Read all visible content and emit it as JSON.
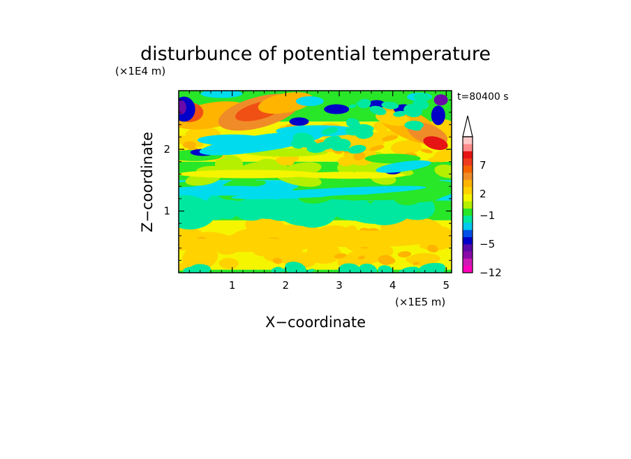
{
  "chart_data": {
    "type": "heatmap",
    "title": "disturbunce of potential temperature",
    "xlabel": "X−coordinate",
    "ylabel": "Z−coordinate",
    "x_unit": "(×1E5 m)",
    "y_unit": "(×1E4 m)",
    "time_label": "t=80400 s",
    "xlim": [
      0,
      5.1
    ],
    "ylim": [
      0,
      2.95
    ],
    "x_ticks": [
      1,
      2,
      3,
      4,
      5
    ],
    "y_ticks": [
      1,
      2
    ],
    "colorbar": {
      "levels": [
        -12,
        -10,
        -8,
        -6,
        -5,
        -4,
        -3,
        -2,
        -1,
        0,
        1,
        2,
        3,
        5,
        6,
        7,
        8,
        9,
        10
      ],
      "tick_labels": [
        "−12",
        "−5",
        "−1",
        "2",
        "7"
      ],
      "tick_values": [
        -12,
        -5,
        -1,
        2,
        7
      ],
      "colors": [
        "#ff00bb",
        "#cc1ab3",
        "#8a0aa8",
        "#5a0aa8",
        "#0000c8",
        "#0050e8",
        "#00c8ee",
        "#00e8a0",
        "#28e628",
        "#b4f000",
        "#f5f500",
        "#ffd200",
        "#ffb400",
        "#f08c28",
        "#f56400",
        "#f03c1e",
        "#e61414",
        "#ff8c8c",
        "#ffc8c8"
      ],
      "extend": "max"
    },
    "grid": false
  }
}
